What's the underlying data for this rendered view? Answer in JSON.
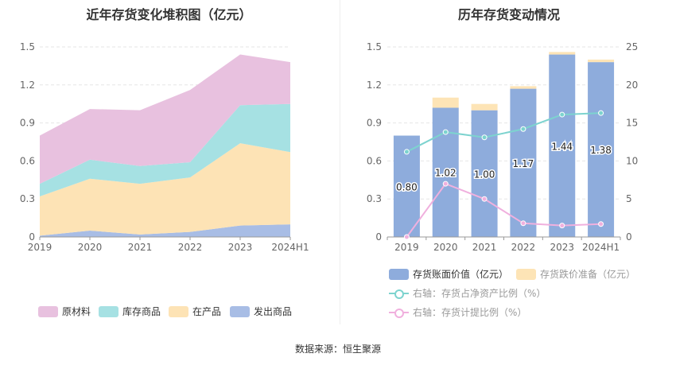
{
  "left_title": "近年存货变化堆积图（亿元）",
  "right_title": "历年存货变动情况",
  "source": "数据来源：恒生聚源",
  "colors": {
    "raw_materials": "#e8c1df",
    "goods_in_stock": "#a6e1e3",
    "wip": "#fde3b5",
    "shipped": "#a8bde5",
    "bar": "#8eacdc",
    "reserve": "#fde4b6",
    "ratio_net_assets": "#7dd3cf",
    "provision_ratio": "#f0b0de"
  },
  "chart_data": [
    {
      "type": "area",
      "title": "近年存货变化堆积图（亿元）",
      "stacked": true,
      "categories": [
        "2019",
        "2020",
        "2021",
        "2022",
        "2023",
        "2024H1"
      ],
      "ylim": [
        0,
        1.5
      ],
      "yticks": [
        "0",
        "0.3",
        "0.6",
        "0.9",
        "1.2",
        "1.5"
      ],
      "grid": true,
      "legend_position": "bottom",
      "series": [
        {
          "name": "发出商品",
          "color_key": "shipped",
          "values": [
            0.01,
            0.05,
            0.02,
            0.04,
            0.09,
            0.1
          ]
        },
        {
          "name": "在产品",
          "color_key": "wip",
          "values": [
            0.31,
            0.41,
            0.4,
            0.43,
            0.65,
            0.57
          ]
        },
        {
          "name": "库存商品",
          "color_key": "goods_in_stock",
          "values": [
            0.1,
            0.15,
            0.14,
            0.12,
            0.3,
            0.38
          ]
        },
        {
          "name": "原材料",
          "color_key": "raw_materials",
          "values": [
            0.38,
            0.4,
            0.44,
            0.57,
            0.4,
            0.33
          ]
        }
      ],
      "legend": [
        "原材料",
        "库存商品",
        "在产品",
        "发出商品"
      ]
    },
    {
      "type": "bar",
      "title": "历年存货变动情况",
      "categories": [
        "2019",
        "2020",
        "2021",
        "2022",
        "2023",
        "2024H1"
      ],
      "ylim_left": [
        0,
        1.5
      ],
      "yticks_left": [
        "0",
        "0.3",
        "0.6",
        "0.9",
        "1.2",
        "1.5"
      ],
      "ylim_right": [
        0,
        25
      ],
      "yticks_right": [
        "0",
        "5",
        "10",
        "15",
        "20",
        "25"
      ],
      "grid": true,
      "legend_position": "bottom",
      "bars": {
        "book_value": {
          "name": "存货账面价值（亿元）",
          "values": [
            0.8,
            1.02,
            1.0,
            1.17,
            1.44,
            1.38
          ],
          "labels": [
            "0.80",
            "1.02",
            "1.00",
            "1.17",
            "1.44",
            "1.38"
          ]
        },
        "reserve": {
          "name": "存货跌价准备（亿元）",
          "values": [
            0.0,
            0.08,
            0.05,
            0.02,
            0.02,
            0.02
          ]
        }
      },
      "lines": [
        {
          "name": "右轴：存货占净资产比例（%）",
          "color_key": "ratio_net_assets",
          "values": [
            11.2,
            13.8,
            13.1,
            14.2,
            16.1,
            16.3
          ]
        },
        {
          "name": "右轴：存货计提比例（%）",
          "color_key": "provision_ratio",
          "values": [
            0.0,
            7.0,
            5.0,
            1.8,
            1.5,
            1.7
          ]
        }
      ]
    }
  ]
}
